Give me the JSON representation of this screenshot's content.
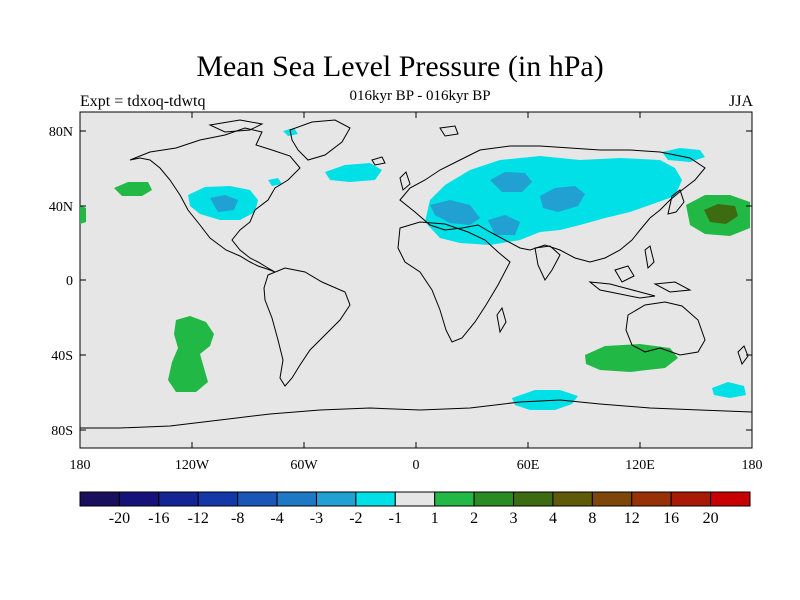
{
  "header": {
    "title": "Mean Sea Level Pressure (in hPa)",
    "experiment_label": "Expt = tdxoq-tdwtq",
    "period_label": "016kyr BP - 016kyr BP",
    "season_label": "JJA"
  },
  "map": {
    "background_color": "#e6e6e6",
    "lat_ticks": [
      "80N",
      "40N",
      "0",
      "40S",
      "80S"
    ],
    "lon_ticks": [
      "180",
      "120W",
      "60W",
      "0",
      "60E",
      "120E",
      "180"
    ]
  },
  "colorbar": {
    "colors": [
      "#1a0f5c",
      "#15137a",
      "#142494",
      "#1438a8",
      "#1a56b8",
      "#1f78c4",
      "#21a0d2",
      "#00e0e6",
      "#e6e6e6",
      "#22b845",
      "#2a8a23",
      "#3d6b12",
      "#5e5a0a",
      "#7d470a",
      "#973208",
      "#a81a05",
      "#c80000"
    ],
    "labels": [
      "-20",
      "-16",
      "-12",
      "-8",
      "-4",
      "-3",
      "-2",
      "-1",
      "1",
      "2",
      "3",
      "4",
      "8",
      "12",
      "16",
      "20"
    ]
  },
  "colors": {
    "cyan": "#00e0e6",
    "blue": "#21a0d2",
    "green": "#22b845",
    "dark_green": "#3d6b12"
  }
}
